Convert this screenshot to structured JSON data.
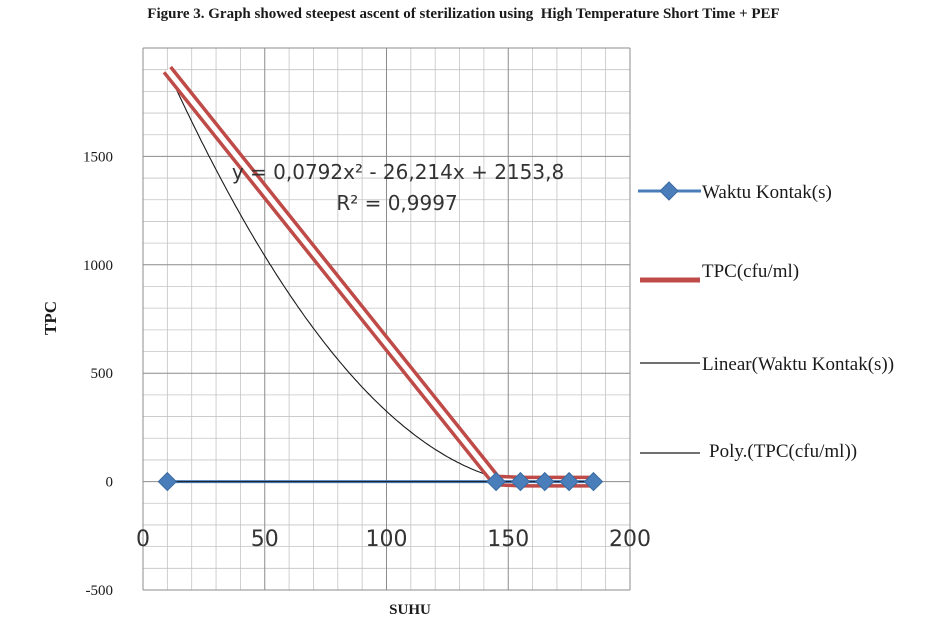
{
  "chart_data": {
    "type": "line",
    "title": "Figure 3. Graph showed steepest ascent of sterilization using  High Temperature Short Time + PEF",
    "xlabel": "SUHU",
    "ylabel": "TPC",
    "xlim": [
      0,
      200
    ],
    "ylim": [
      -500,
      2000
    ],
    "x_ticks": [
      "0",
      "50",
      "100",
      "150",
      "200"
    ],
    "y_ticks": [
      "-500",
      "0",
      "500",
      "1000",
      "1500"
    ],
    "grid": true,
    "legend_position": "right",
    "series": [
      {
        "name": "Waktu Kontak(s)",
        "color": "#4a7ebb",
        "marker": "diamond",
        "points": [
          [
            10,
            0
          ],
          [
            145,
            0
          ],
          [
            155,
            0
          ],
          [
            165,
            0
          ],
          [
            175,
            0
          ],
          [
            185,
            0
          ]
        ]
      },
      {
        "name": "TPC(cfu/ml)",
        "color": "#be4b48",
        "points": [
          [
            10,
            1900
          ],
          [
            145,
            5
          ],
          [
            155,
            0
          ],
          [
            165,
            0
          ],
          [
            175,
            0
          ],
          [
            185,
            0
          ]
        ]
      },
      {
        "name": "Linear(Waktu Kontak(s))",
        "color": "#1a1a1a",
        "trendline": "linear"
      },
      {
        "name": "Poly.(TPC(cfu/ml))",
        "color": "#1a1a1a",
        "trendline": "polynomial"
      }
    ],
    "annotations": [
      "y = 0,0792x² - 26,214x + 2153,8",
      "R² = 0,9997"
    ]
  }
}
